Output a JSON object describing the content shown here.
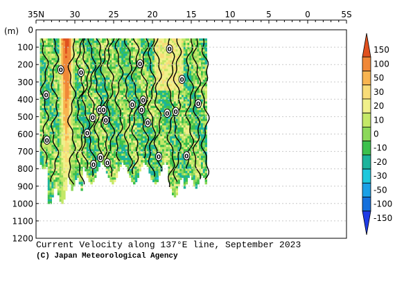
{
  "chart_data": {
    "type": "heatmap",
    "title": "Current Velocity along 137°E line, September 2023",
    "credit": "(C) Japan Meteorological Agency",
    "ylabel": "(m)",
    "x_ticks": [
      {
        "value": 35,
        "label": "35N"
      },
      {
        "value": 30,
        "label": "30"
      },
      {
        "value": 25,
        "label": "25"
      },
      {
        "value": 20,
        "label": "20"
      },
      {
        "value": 15,
        "label": "15"
      },
      {
        "value": 10,
        "label": "10"
      },
      {
        "value": 5,
        "label": "5"
      },
      {
        "value": 0,
        "label": "0"
      },
      {
        "value": -5,
        "label": "5S"
      }
    ],
    "xlim": [
      35,
      -5
    ],
    "ylim": [
      0,
      1200
    ],
    "y_ticks": [
      0,
      100,
      200,
      300,
      400,
      500,
      600,
      700,
      800,
      900,
      1000,
      1100,
      1200
    ],
    "colorbar": {
      "labels": [
        "150",
        "100",
        "50",
        "30",
        "20",
        "10",
        "0",
        "-10",
        "-20",
        "-30",
        "-50",
        "-100",
        "-150"
      ],
      "colors": [
        "#e0501e",
        "#f08838",
        "#f8b450",
        "#f8dc78",
        "#f0f08a",
        "#c4e868",
        "#8cd85a",
        "#3cc04c",
        "#1cb49c",
        "#1ec8dc",
        "#1aa0e6",
        "#1470dc",
        "#1f3ce6"
      ]
    },
    "contour_labels": [
      {
        "lat": 31.8,
        "depth": 230
      },
      {
        "lat": 29.2,
        "depth": 245
      },
      {
        "lat": 33.7,
        "depth": 375
      },
      {
        "lat": 33.6,
        "depth": 635
      },
      {
        "lat": 26.8,
        "depth": 460
      },
      {
        "lat": 26.3,
        "depth": 460
      },
      {
        "lat": 27.7,
        "depth": 505
      },
      {
        "lat": 26.0,
        "depth": 520
      },
      {
        "lat": 28.4,
        "depth": 595
      },
      {
        "lat": 26.7,
        "depth": 735
      },
      {
        "lat": 27.6,
        "depth": 775
      },
      {
        "lat": 25.8,
        "depth": 765
      },
      {
        "lat": 21.6,
        "depth": 195
      },
      {
        "lat": 22.6,
        "depth": 430
      },
      {
        "lat": 21.2,
        "depth": 405
      },
      {
        "lat": 21.4,
        "depth": 460
      },
      {
        "lat": 20.6,
        "depth": 535
      },
      {
        "lat": 18.1,
        "depth": 480
      },
      {
        "lat": 17.0,
        "depth": 470
      },
      {
        "lat": 19.2,
        "depth": 730
      },
      {
        "lat": 17.8,
        "depth": 110
      },
      {
        "lat": 16.2,
        "depth": 285
      },
      {
        "lat": 15.6,
        "depth": 725
      },
      {
        "lat": 14.1,
        "depth": 425
      }
    ]
  }
}
